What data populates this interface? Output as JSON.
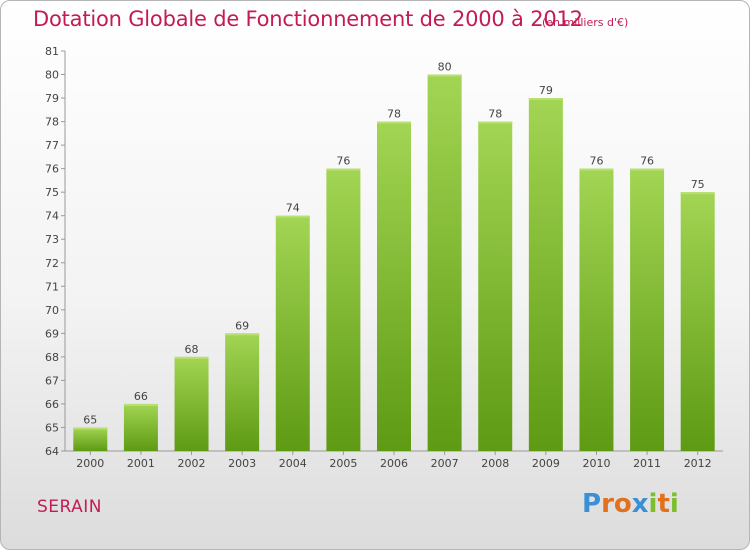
{
  "header": {
    "title": "Dotation Globale de Fonctionnement de 2000 à 2012",
    "subtitle": "(en milliers d'€)"
  },
  "footer": {
    "commune": "SERAIN",
    "logo_letters": [
      "P",
      "r",
      "o",
      "x",
      "i",
      "t",
      "i"
    ],
    "logo_colors": [
      "#3b8fd6",
      "#e2711d",
      "#e2711d",
      "#3b8fd6",
      "#7bbf2b",
      "#e2711d",
      "#7bbf2b"
    ]
  },
  "chart_data": {
    "type": "bar",
    "title": "Dotation Globale de Fonctionnement de 2000 à 2012",
    "subtitle": "(en milliers d'€)",
    "categories": [
      "2000",
      "2001",
      "2002",
      "2003",
      "2004",
      "2005",
      "2006",
      "2007",
      "2008",
      "2009",
      "2010",
      "2011",
      "2012"
    ],
    "values": [
      65,
      66,
      68,
      69,
      74,
      76,
      78,
      80,
      78,
      79,
      76,
      76,
      75
    ],
    "ylim": [
      64,
      81
    ],
    "yticks": [
      64,
      65,
      66,
      67,
      68,
      69,
      70,
      71,
      72,
      73,
      74,
      75,
      76,
      77,
      78,
      79,
      80,
      81
    ],
    "xlabel": "",
    "ylabel": "",
    "grid": false,
    "colors": {
      "bar_top": "#a2d553",
      "bar_bottom": "#5e9a14",
      "label": "#444444",
      "axis": "#999999"
    }
  }
}
